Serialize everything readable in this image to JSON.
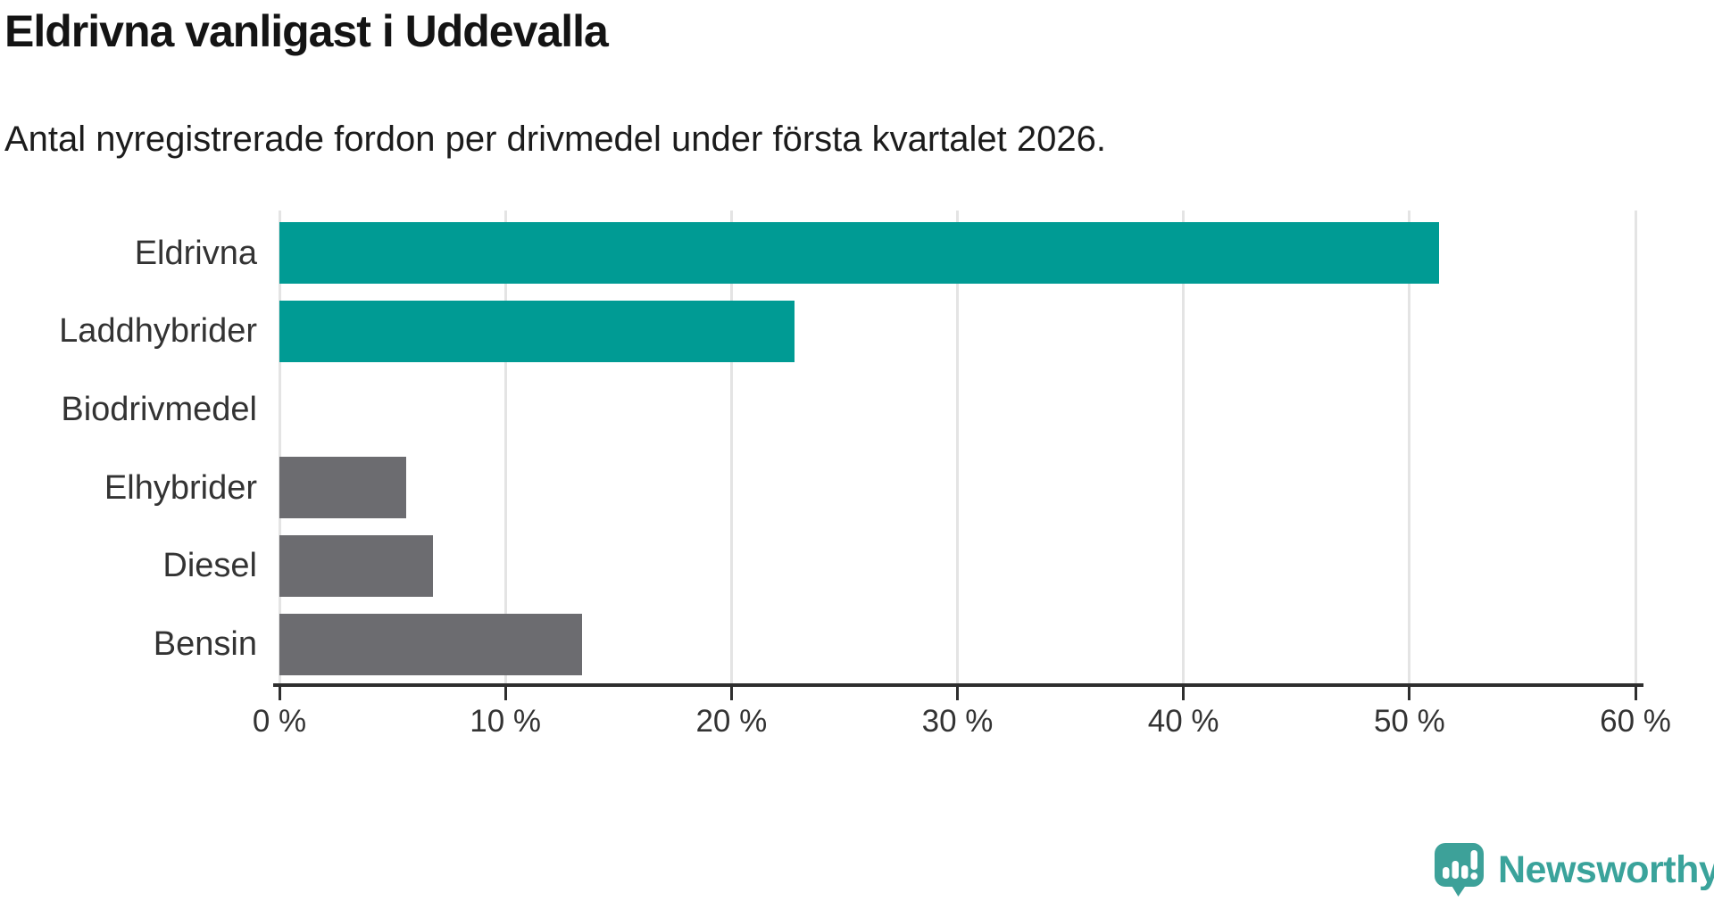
{
  "page": {
    "title": "Eldrivna vanligast i Uddevalla",
    "subtitle": "Antal nyregistrerade fordon per drivmedel under första kvartalet 2026."
  },
  "branding": {
    "logo_text": "Newsworthy",
    "logo_icon": "newsworthy-speech-bubble-bar-chart-icon",
    "logo_icon_color": "#3da199",
    "logo_text_color": "#3aa39b"
  },
  "colors": {
    "bar_teal": "#009b94",
    "bar_gray": "#6c6c70",
    "gridline": "#e4e4e4",
    "axis": "#2e2e2e",
    "title_text": "#141414",
    "label_text": "#333333"
  },
  "chart_data": {
    "type": "bar",
    "orientation": "horizontal",
    "title": "Eldrivna vanligast i Uddevalla",
    "subtitle": "Antal nyregistrerade fordon per drivmedel under första kvartalet 2026.",
    "categories": [
      "Eldrivna",
      "Laddhybrider",
      "Biodrivmedel",
      "Elhybrider",
      "Diesel",
      "Bensin"
    ],
    "values": [
      51.3,
      22.8,
      0,
      5.6,
      6.8,
      13.4
    ],
    "unit": "%",
    "xlim": [
      0,
      60
    ],
    "x_tick_values": [
      0,
      10,
      20,
      30,
      40,
      50,
      60
    ],
    "x_tick_labels": [
      "0 %",
      "10 %",
      "20 %",
      "30 %",
      "40 %",
      "50 %",
      "60 %"
    ],
    "bar_colors": [
      "#009b94",
      "#009b94",
      "#009b94",
      "#6c6c70",
      "#6c6c70",
      "#6c6c70"
    ],
    "grid": true,
    "legend": false
  }
}
